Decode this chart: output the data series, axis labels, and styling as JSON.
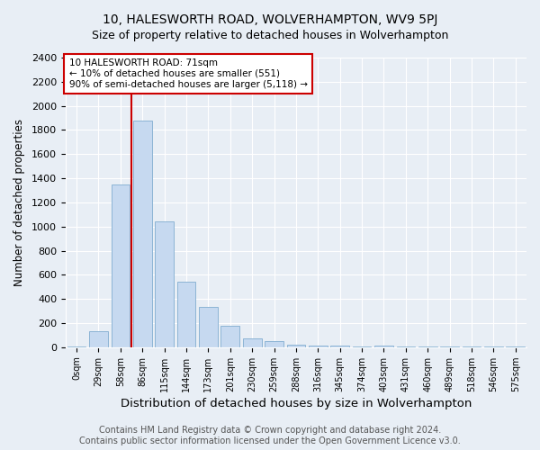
{
  "title": "10, HALESWORTH ROAD, WOLVERHAMPTON, WV9 5PJ",
  "subtitle": "Size of property relative to detached houses in Wolverhampton",
  "xlabel": "Distribution of detached houses by size in Wolverhampton",
  "ylabel": "Number of detached properties",
  "categories": [
    "0sqm",
    "29sqm",
    "58sqm",
    "86sqm",
    "115sqm",
    "144sqm",
    "173sqm",
    "201sqm",
    "230sqm",
    "259sqm",
    "288sqm",
    "316sqm",
    "345sqm",
    "374sqm",
    "403sqm",
    "431sqm",
    "460sqm",
    "489sqm",
    "518sqm",
    "546sqm",
    "575sqm"
  ],
  "values": [
    5,
    135,
    1350,
    1880,
    1040,
    545,
    335,
    175,
    70,
    50,
    20,
    15,
    10,
    5,
    10,
    5,
    5,
    5,
    3,
    5,
    3
  ],
  "bar_color": "#c6d9f0",
  "bar_edge_color": "#8cb4d5",
  "vline_x_index": 2,
  "vline_color": "#cc0000",
  "annotation_text": "10 HALESWORTH ROAD: 71sqm\n← 10% of detached houses are smaller (551)\n90% of semi-detached houses are larger (5,118) →",
  "annotation_box_color": "#ffffff",
  "annotation_box_edge": "#cc0000",
  "ylim": [
    0,
    2400
  ],
  "yticks": [
    0,
    200,
    400,
    600,
    800,
    1000,
    1200,
    1400,
    1600,
    1800,
    2000,
    2200,
    2400
  ],
  "background_color": "#e8eef5",
  "plot_bg_color": "#e8eef5",
  "footer": "Contains HM Land Registry data © Crown copyright and database right 2024.\nContains public sector information licensed under the Open Government Licence v3.0.",
  "title_fontsize": 10,
  "subtitle_fontsize": 9,
  "xlabel_fontsize": 9.5,
  "ylabel_fontsize": 8.5,
  "footer_fontsize": 7
}
